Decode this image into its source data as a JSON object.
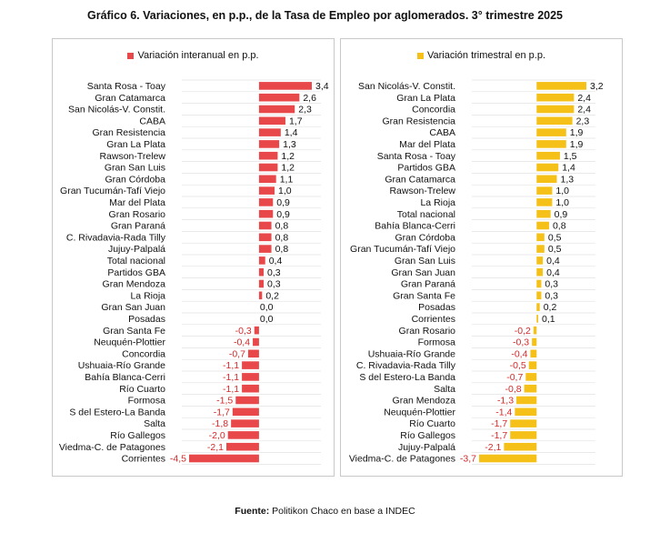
{
  "title": "Gráfico 6. Variaciones, en p.p., de la Tasa de Empleo por aglomerados. 3° trimestre 2025",
  "source": {
    "label": "Fuente:",
    "text": "Politikon Chaco en base a INDEC"
  },
  "colors": {
    "interanual": "#e84849",
    "trimestral": "#f5c018",
    "negative_label": "#d42a2a",
    "positive_label": "#111111",
    "gridline": "#e2e2e2"
  },
  "chart_data": [
    {
      "type": "bar",
      "orientation": "horizontal",
      "legend": "Variación interanual en p.p.",
      "color": "#e84849",
      "xlim": [
        -4.5,
        3.4
      ],
      "categories": [
        "Santa Rosa - Toay",
        "Gran Catamarca",
        "San Nicolás-V. Constit.",
        "CABA",
        "Gran Resistencia",
        "Gran La Plata",
        "Rawson-Trelew",
        "Gran San Luis",
        "Gran Córdoba",
        "Gran Tucumán-Tafí Viejo",
        "Mar del Plata",
        "Gran Rosario",
        "Gran Paraná",
        "C. Rivadavia-Rada Tilly",
        "Jujuy-Palpalá",
        "Total nacional",
        "Partidos GBA",
        "Gran Mendoza",
        "La Rioja",
        "Gran San Juan",
        "Posadas",
        "Gran Santa Fe",
        "Neuquén-Plottier",
        "Concordia",
        "Ushuaia-Río Grande",
        "Bahía Blanca-Cerri",
        "Río Cuarto",
        "Formosa",
        "S del Estero-La Banda",
        "Salta",
        "Río Gallegos",
        "Viedma-C. de Patagones",
        "Corrientes"
      ],
      "values": [
        3.4,
        2.6,
        2.3,
        1.7,
        1.4,
        1.3,
        1.2,
        1.2,
        1.1,
        1.0,
        0.9,
        0.9,
        0.8,
        0.8,
        0.8,
        0.4,
        0.3,
        0.3,
        0.2,
        0.0,
        0.0,
        -0.3,
        -0.4,
        -0.7,
        -1.1,
        -1.1,
        -1.1,
        -1.5,
        -1.7,
        -1.8,
        -2.0,
        -2.1,
        -4.5
      ],
      "labels": [
        "3,4",
        "2,6",
        "2,3",
        "1,7",
        "1,4",
        "1,3",
        "1,2",
        "1,2",
        "1,1",
        "1,0",
        "0,9",
        "0,9",
        "0,8",
        "0,8",
        "0,8",
        "0,4",
        "0,3",
        "0,3",
        "0,2",
        "0,0",
        "0,0",
        "-0,3",
        "-0,4",
        "-0,7",
        "-1,1",
        "-1,1",
        "-1,1",
        "-1,5",
        "-1,7",
        "-1,8",
        "-2,0",
        "-2,1",
        "-4,5"
      ]
    },
    {
      "type": "bar",
      "orientation": "horizontal",
      "legend": "Variación trimestral en p.p.",
      "color": "#f5c018",
      "xlim": [
        -3.7,
        3.2
      ],
      "categories": [
        "San Nicolás-V. Constit.",
        "Gran La Plata",
        "Concordia",
        "Gran Resistencia",
        "CABA",
        "Mar del Plata",
        "Santa Rosa - Toay",
        "Partidos GBA",
        "Gran Catamarca",
        "Rawson-Trelew",
        "La Rioja",
        "Total nacional",
        "Bahía Blanca-Cerri",
        "Gran Córdoba",
        "Gran Tucumán-Tafí Viejo",
        "Gran San Luis",
        "Gran San Juan",
        "Gran Paraná",
        "Gran Santa Fe",
        "Posadas",
        "Corrientes",
        "Gran Rosario",
        "Formosa",
        "Ushuaia-Río Grande",
        "C. Rivadavia-Rada Tilly",
        "S del Estero-La Banda",
        "Salta",
        "Gran Mendoza",
        "Neuquén-Plottier",
        "Río Cuarto",
        "Río Gallegos",
        "Jujuy-Palpalá",
        "Viedma-C. de Patagones"
      ],
      "values": [
        3.2,
        2.4,
        2.4,
        2.3,
        1.9,
        1.9,
        1.5,
        1.4,
        1.3,
        1.0,
        1.0,
        0.9,
        0.8,
        0.5,
        0.5,
        0.4,
        0.4,
        0.3,
        0.3,
        0.2,
        0.1,
        -0.2,
        -0.3,
        -0.4,
        -0.5,
        -0.7,
        -0.8,
        -1.3,
        -1.4,
        -1.7,
        -1.7,
        -2.1,
        -3.7
      ],
      "labels": [
        "3,2",
        "2,4",
        "2,4",
        "2,3",
        "1,9",
        "1,9",
        "1,5",
        "1,4",
        "1,3",
        "1,0",
        "1,0",
        "0,9",
        "0,8",
        "0,5",
        "0,5",
        "0,4",
        "0,4",
        "0,3",
        "0,3",
        "0,2",
        "0,1",
        "-0,2",
        "-0,3",
        "-0,4",
        "-0,5",
        "-0,7",
        "-0,8",
        "-1,3",
        "-1,4",
        "-1,7",
        "-1,7",
        "-2,1",
        "-3,7"
      ]
    }
  ]
}
